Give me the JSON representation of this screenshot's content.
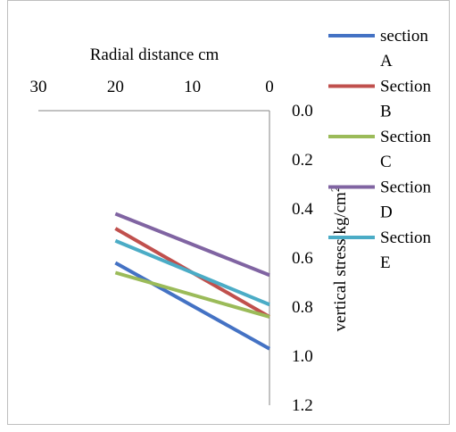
{
  "chart_data": {
    "type": "line",
    "xlabel": "Radial distance cm",
    "ylabel": "vertical stress kg/cm",
    "ylabel_superscript": "2",
    "x_ticks": [
      "30",
      "20",
      "10",
      "0"
    ],
    "y_ticks": [
      "0.0",
      "0.2",
      "0.4",
      "0.6",
      "0.8",
      "1.0",
      "1.2"
    ],
    "xlim": [
      30,
      0
    ],
    "ylim": [
      0,
      1.2
    ],
    "x_reversed": true,
    "y_reversed": true,
    "x": [
      20,
      0
    ],
    "series": [
      {
        "name": "section A",
        "label_line1": "section",
        "label_line2": "A",
        "color": "#4472C4",
        "values": [
          0.62,
          0.97
        ]
      },
      {
        "name": "Section B",
        "label_line1": "Section",
        "label_line2": "B",
        "color": "#C0504D",
        "values": [
          0.48,
          0.84
        ]
      },
      {
        "name": "Section C",
        "label_line1": "Section",
        "label_line2": "C",
        "color": "#9BBB59",
        "values": [
          0.66,
          0.84
        ]
      },
      {
        "name": "Section D",
        "label_line1": "Section",
        "label_line2": "D",
        "color": "#8064A2",
        "values": [
          0.42,
          0.67
        ]
      },
      {
        "name": "Section E",
        "label_line1": "Section",
        "label_line2": "E",
        "color": "#4BACC6",
        "values": [
          0.53,
          0.79
        ]
      }
    ],
    "legend_position": "right",
    "grid": false
  }
}
